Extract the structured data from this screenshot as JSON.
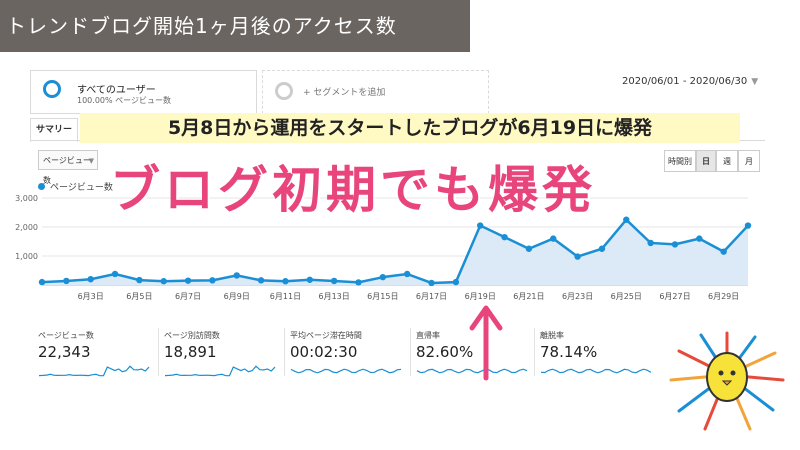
{
  "banner": {
    "title": "トレンドブログ開始1ヶ月後のアクセス数"
  },
  "segments": {
    "active": {
      "name": "すべてのユーザー",
      "sub": "100.00% ページビュー数"
    },
    "add": {
      "label": "+ セグメントを追加"
    }
  },
  "date_range": "2020/06/01 - 2020/06/30",
  "tabs": {
    "summary": "サマリー"
  },
  "annotation": "5月8日から運用をスタートしたブログが6月19日に爆発",
  "headline": "ブログ初期でも爆発",
  "metric_select": "ページビュー数",
  "period_buttons": {
    "hour": "時間別",
    "day": "日",
    "week": "週",
    "month": "月"
  },
  "legend": "ページビュー数",
  "colors": {
    "line": "#1a8fd5",
    "fill": "#dbeaf6",
    "accent": "#e8457c",
    "banner": "#6b6561"
  },
  "chart_data": {
    "type": "area",
    "x": [
      "6月1日",
      "6月2日",
      "6月3日",
      "6月4日",
      "6月5日",
      "6月6日",
      "6月7日",
      "6月8日",
      "6月9日",
      "6月10日",
      "6月11日",
      "6月12日",
      "6月13日",
      "6月14日",
      "6月15日",
      "6月16日",
      "6月17日",
      "6月18日",
      "6月19日",
      "6月20日",
      "6月21日",
      "6月22日",
      "6月23日",
      "6月24日",
      "6月25日",
      "6月26日",
      "6月27日",
      "6月28日",
      "6月29日",
      "6月30日"
    ],
    "tick_labels": [
      "6月3日",
      "6月5日",
      "6月7日",
      "6月9日",
      "6月11日",
      "6月13日",
      "6月15日",
      "6月17日",
      "6月19日",
      "6月21日",
      "6月23日",
      "6月25日",
      "6月27日",
      "6月29日"
    ],
    "series": [
      {
        "name": "ページビュー数",
        "values": [
          100,
          140,
          200,
          380,
          170,
          130,
          150,
          160,
          330,
          160,
          130,
          180,
          140,
          90,
          270,
          380,
          70,
          100,
          2050,
          1650,
          1250,
          1600,
          980,
          1250,
          2250,
          1450,
          1400,
          1600,
          1150,
          2050
        ]
      }
    ],
    "y_ticks": [
      "1,000",
      "2,000",
      "3,000"
    ],
    "ylim": [
      0,
      3000
    ]
  },
  "metrics": [
    {
      "label": "ページビュー数",
      "value": "22,343"
    },
    {
      "label": "ページ別訪問数",
      "value": "18,891"
    },
    {
      "label": "平均ページ滞在時間",
      "value": "00:02:30"
    },
    {
      "label": "直帰率",
      "value": "82.60%"
    },
    {
      "label": "離脱率",
      "value": "78.14%"
    }
  ]
}
